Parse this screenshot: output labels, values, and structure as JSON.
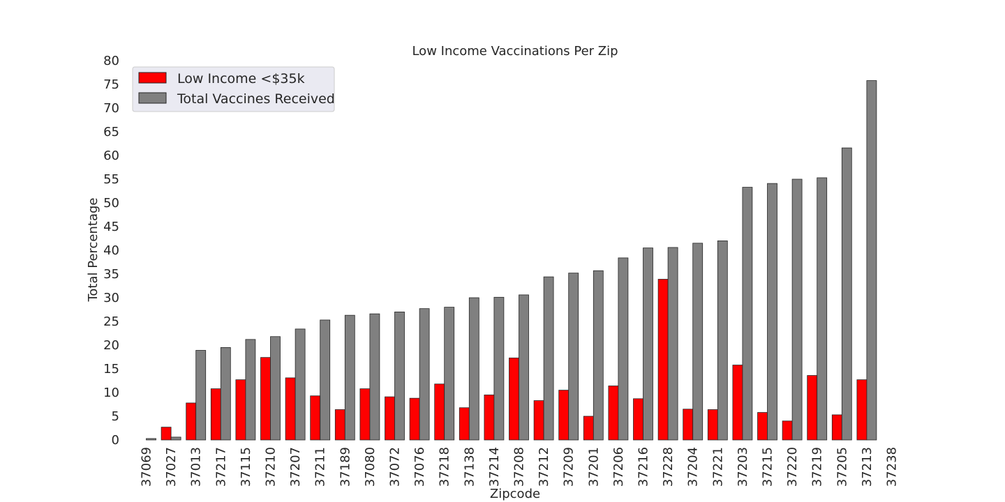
{
  "chart_data": {
    "type": "bar",
    "title": "Low Income Vaccinations Per Zip",
    "xlabel": "Zipcode",
    "ylabel": "Total Percentage",
    "ylim": [
      0,
      80
    ],
    "yticks": [
      0,
      5,
      10,
      15,
      20,
      25,
      30,
      35,
      40,
      45,
      50,
      55,
      60,
      65,
      70,
      75,
      80
    ],
    "grid": false,
    "legend_position": "top-left",
    "categories": [
      "37069",
      "37027",
      "37013",
      "37217",
      "37115",
      "37210",
      "37207",
      "37211",
      "37189",
      "37080",
      "37072",
      "37076",
      "37218",
      "37138",
      "37214",
      "37208",
      "37212",
      "37209",
      "37201",
      "37206",
      "37216",
      "37228",
      "37204",
      "37221",
      "37203",
      "37215",
      "37220",
      "37219",
      "37205",
      "37213",
      "37238"
    ],
    "series": [
      {
        "name": "Low Income <$35k",
        "color": "#ff0000",
        "values": [
          0,
          2.7,
          7.8,
          10.8,
          12.7,
          17.4,
          13.1,
          9.3,
          6.4,
          10.8,
          9.1,
          8.8,
          11.8,
          6.8,
          9.5,
          17.3,
          8.3,
          10.5,
          5.0,
          11.4,
          8.7,
          33.9,
          6.5,
          6.4,
          15.8,
          5.8,
          4.0,
          13.6,
          5.3,
          12.7,
          0
        ]
      },
      {
        "name": "Total Vaccines Received",
        "color": "#808080",
        "values": [
          0.3,
          0.6,
          18.9,
          19.5,
          21.2,
          21.8,
          23.4,
          25.3,
          26.3,
          26.6,
          27.0,
          27.7,
          28.0,
          30.0,
          30.1,
          30.6,
          34.4,
          35.2,
          35.7,
          38.4,
          40.5,
          40.6,
          41.5,
          42.0,
          53.3,
          54.1,
          55.0,
          55.3,
          61.6,
          75.8,
          0
        ]
      }
    ]
  }
}
